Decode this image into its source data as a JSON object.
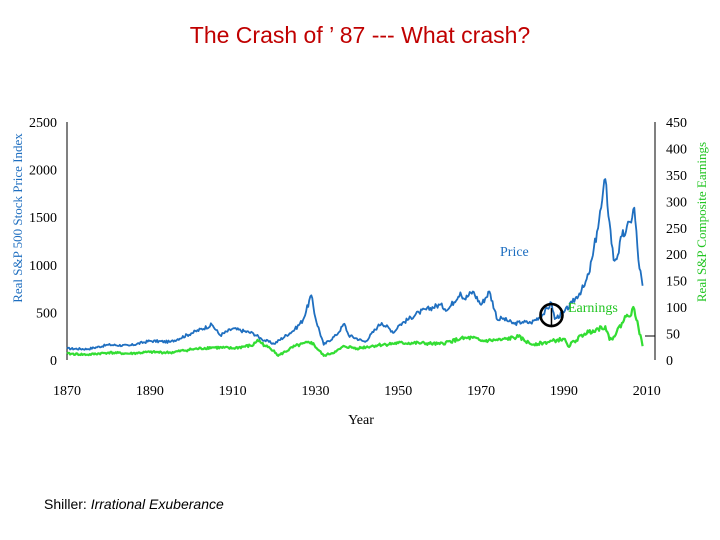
{
  "slide": {
    "title": "The Crash of ’ 87 --- What crash?",
    "caption_author": "Shiller: ",
    "caption_book": "Irrational Exuberance"
  },
  "chart_data": {
    "type": "line",
    "xlabel": "Year",
    "ylabel_left": "Real S&P 500 Stock Price Index",
    "ylabel_right": "Real S&P Composite Earnings",
    "xlim": [
      1870,
      2012
    ],
    "xticks": [
      1870,
      1890,
      1910,
      1930,
      1950,
      1970,
      1990,
      2010
    ],
    "ylim_left": [
      0,
      2500
    ],
    "yticks_left": [
      0,
      500,
      1000,
      1500,
      2000,
      2500
    ],
    "ylim_right": [
      0,
      450
    ],
    "yticks_right": [
      0,
      50,
      100,
      150,
      200,
      250,
      300,
      350,
      400,
      450
    ],
    "colors": {
      "price": "#1f6fc0",
      "earnings": "#33dd33"
    },
    "annotations": {
      "price": "Price",
      "earnings": "Earnings"
    },
    "highlight": {
      "year": 1987,
      "price": 430,
      "note": "1987 crash"
    },
    "series": [
      {
        "name": "Price",
        "axis": "left",
        "x": [
          1870,
          1875,
          1880,
          1885,
          1890,
          1895,
          1900,
          1905,
          1907,
          1910,
          1915,
          1917,
          1920,
          1925,
          1927,
          1929,
          1930,
          1932,
          1935,
          1937,
          1938,
          1942,
          1945,
          1946,
          1949,
          1950,
          1955,
          1960,
          1962,
          1965,
          1966,
          1968,
          1970,
          1972,
          1974,
          1975,
          1978,
          1980,
          1982,
          1985,
          1987,
          1987.8,
          1988,
          1990,
          1992,
          1995,
          1996,
          1997,
          1998,
          1999,
          2000,
          2001,
          2002,
          2003,
          2004,
          2005,
          2006,
          2007,
          2008,
          2009
        ],
        "values": [
          120,
          115,
          160,
          150,
          200,
          190,
          280,
          370,
          260,
          330,
          280,
          220,
          170,
          320,
          420,
          680,
          440,
          160,
          260,
          380,
          260,
          190,
          350,
          390,
          290,
          360,
          500,
          580,
          530,
          710,
          640,
          720,
          580,
          720,
          420,
          440,
          380,
          400,
          390,
          480,
          600,
          430,
          440,
          500,
          600,
          780,
          900,
          1100,
          1350,
          1600,
          1900,
          1450,
          1050,
          1100,
          1300,
          1350,
          1450,
          1600,
          1050,
          780
        ]
      },
      {
        "name": "Earnings",
        "axis": "right",
        "x": [
          1870,
          1875,
          1880,
          1885,
          1890,
          1895,
          1900,
          1905,
          1910,
          1915,
          1916,
          1918,
          1920,
          1921,
          1925,
          1929,
          1932,
          1935,
          1937,
          1940,
          1945,
          1950,
          1955,
          1960,
          1965,
          1968,
          1970,
          1975,
          1979,
          1982,
          1985,
          1990,
          1991,
          1995,
          1997,
          2000,
          2001,
          2002,
          2005,
          2007,
          2008,
          2009
        ],
        "values": [
          12,
          10,
          14,
          12,
          15,
          14,
          20,
          24,
          22,
          28,
          38,
          26,
          18,
          8,
          26,
          34,
          8,
          16,
          26,
          22,
          28,
          32,
          32,
          30,
          40,
          42,
          36,
          38,
          44,
          30,
          32,
          40,
          26,
          50,
          56,
          64,
          38,
          44,
          82,
          96,
          62,
          26
        ]
      }
    ]
  }
}
